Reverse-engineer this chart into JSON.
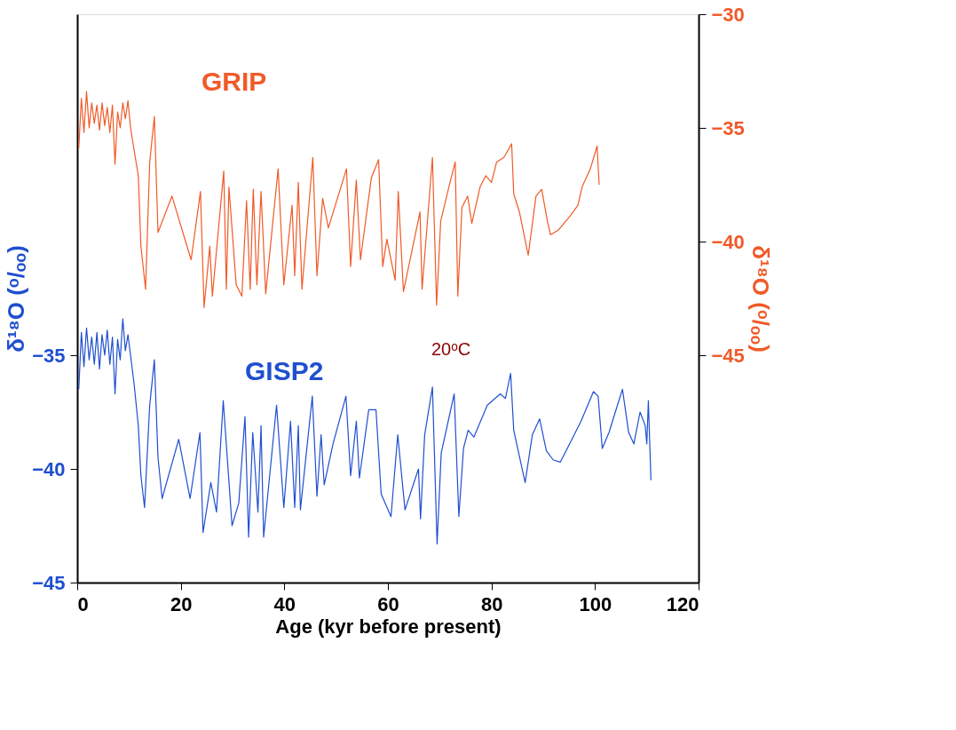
{
  "chart_data": {
    "type": "line",
    "xlabel": "Age (kyr before present)",
    "ylabel": "δ¹⁸O (ᵒ/ₒₒ)",
    "y2label": "δ¹⁸O (ᵒ/ₒₒ)",
    "xlim": [
      0,
      120
    ],
    "xticks": [
      0,
      20,
      40,
      60,
      80,
      100,
      120
    ],
    "ylim": [
      -45,
      -20
    ],
    "yticks": [
      -45,
      -40,
      -35
    ],
    "y2lim": [
      -55,
      -30
    ],
    "y2ticks": [
      -30,
      -35,
      -40,
      -45
    ],
    "grid": false,
    "marker": "none",
    "line_style": "solid",
    "annotations": [
      "20ᵒC"
    ],
    "series": [
      {
        "name": "GRIP",
        "color": "#f05a28",
        "axis": "y2",
        "x": [
          0.3,
          0.8,
          1.3,
          1.8,
          2.3,
          2.8,
          3.3,
          3.8,
          4.3,
          4.8,
          5.3,
          5.8,
          6.3,
          6.8,
          7.3,
          7.8,
          8.3,
          8.8,
          9.3,
          9.8,
          10.3,
          11,
          11.8,
          12.3,
          13.2,
          14,
          14.9,
          15.6,
          18.3,
          20.4,
          22,
          23.8,
          24.5,
          25.6,
          26.1,
          28.3,
          28.8,
          29.3,
          30.7,
          31.8,
          32.7,
          33.4,
          34,
          34.7,
          35.5,
          36.4,
          38.8,
          39.9,
          41.5,
          42,
          42.7,
          43.4,
          45.5,
          46.3,
          47.4,
          48.5,
          52,
          52.8,
          53.9,
          54.7,
          56.8,
          58.2,
          59,
          59.8,
          61.4,
          62,
          63,
          66.2,
          66.6,
          68.6,
          69.4,
          70.2,
          72.1,
          73,
          73.5,
          74.3,
          75.4,
          76.2,
          77.8,
          78.9,
          80,
          81,
          82.4,
          83.9,
          84.3,
          85.4,
          87.1,
          88.6,
          89.7,
          90.8,
          91.4,
          92.9,
          95.1,
          96.7,
          97.5,
          99.1,
          100.4,
          100.8
        ],
        "values": [
          -35.9,
          -33.7,
          -35.2,
          -33.4,
          -35.0,
          -33.9,
          -34.8,
          -34.0,
          -35.1,
          -33.9,
          -34.9,
          -34.1,
          -35.2,
          -34.0,
          -36.6,
          -34.3,
          -35.0,
          -33.9,
          -34.6,
          -33.8,
          -35.0,
          -36.0,
          -37.1,
          -40.2,
          -42.1,
          -36.5,
          -34.5,
          -39.6,
          -38.0,
          -39.6,
          -40.8,
          -37.8,
          -42.9,
          -40.2,
          -42.4,
          -36.9,
          -42.1,
          -37.6,
          -41.9,
          -42.4,
          -38.2,
          -42.1,
          -37.7,
          -41.9,
          -37.8,
          -42.3,
          -36.8,
          -41.9,
          -38.4,
          -41.5,
          -37.4,
          -42.1,
          -36.3,
          -41.5,
          -38.1,
          -39.4,
          -36.8,
          -41.1,
          -37.3,
          -40.8,
          -37.2,
          -36.4,
          -41.1,
          -39.9,
          -41.7,
          -37.8,
          -42.2,
          -38.7,
          -42.1,
          -36.3,
          -42.8,
          -39.1,
          -37.3,
          -36.5,
          -42.4,
          -38.5,
          -38.0,
          -39.2,
          -37.6,
          -37.1,
          -37.4,
          -36.5,
          -36.3,
          -35.7,
          -37.9,
          -38.7,
          -40.6,
          -38.0,
          -37.7,
          -39.1,
          -39.7,
          -39.5,
          -38.9,
          -38.4,
          -37.6,
          -36.8,
          -35.8,
          -37.5
        ]
      },
      {
        "name": "GISP2",
        "color": "#1f4fd0",
        "axis": "y",
        "x": [
          0.3,
          0.8,
          1.3,
          1.8,
          2.3,
          2.8,
          3.3,
          3.8,
          4.3,
          4.8,
          5.3,
          5.8,
          6.3,
          6.8,
          7.3,
          7.8,
          8.3,
          8.8,
          9.3,
          9.8,
          10.3,
          11,
          11.8,
          12.3,
          13,
          14,
          14.9,
          15.6,
          16.4,
          19.6,
          21.8,
          23.7,
          24.3,
          25.8,
          26.9,
          28.2,
          29.9,
          31.2,
          32.4,
          33.1,
          33.9,
          34.9,
          35.5,
          36,
          38.5,
          39.9,
          41.2,
          42,
          42.7,
          43.1,
          45.4,
          46.3,
          47.1,
          47.7,
          49.4,
          51.9,
          52.8,
          53.9,
          54.5,
          56.3,
          57.7,
          58.7,
          60.6,
          61.9,
          63.3,
          65.9,
          66.3,
          67.1,
          68.6,
          69.5,
          70.3,
          72.8,
          73.7,
          74.6,
          75.5,
          76.6,
          79.2,
          81.7,
          82.7,
          83.7,
          84.3,
          86.5,
          87.9,
          89.3,
          90.6,
          91.9,
          93.3,
          95.1,
          97.3,
          99.7,
          100.6,
          101.4,
          102.7,
          104.6,
          105.3,
          106.5,
          107.5,
          108.7,
          109.7,
          110,
          110.3,
          110.8
        ],
        "values": [
          -36.5,
          -34.0,
          -35.5,
          -33.8,
          -35.2,
          -34.2,
          -35.4,
          -34.0,
          -35.6,
          -34.1,
          -35.0,
          -33.9,
          -35.4,
          -34.2,
          -36.7,
          -34.3,
          -35.2,
          -33.4,
          -34.8,
          -34.1,
          -35.0,
          -36.3,
          -38.1,
          -40.3,
          -41.7,
          -37.2,
          -35.2,
          -39.5,
          -41.3,
          -38.7,
          -41.3,
          -38.4,
          -42.8,
          -40.6,
          -41.9,
          -37.0,
          -42.5,
          -41.5,
          -37.7,
          -43.0,
          -38.4,
          -41.9,
          -38.1,
          -43.0,
          -37.2,
          -41.7,
          -37.9,
          -41.7,
          -38.1,
          -41.8,
          -36.8,
          -41.2,
          -38.5,
          -40.7,
          -38.9,
          -36.8,
          -40.3,
          -37.9,
          -40.4,
          -37.4,
          -37.4,
          -41.1,
          -42.1,
          -38.5,
          -41.8,
          -40.0,
          -42.2,
          -38.5,
          -36.4,
          -43.3,
          -39.3,
          -36.7,
          -42.1,
          -39.1,
          -38.3,
          -38.6,
          -37.2,
          -36.7,
          -36.9,
          -35.8,
          -38.3,
          -40.6,
          -38.5,
          -37.8,
          -39.2,
          -39.6,
          -39.7,
          -38.9,
          -37.9,
          -36.6,
          -36.8,
          -39.1,
          -38.4,
          -37.0,
          -36.5,
          -38.4,
          -38.9,
          -37.5,
          -38.1,
          -38.9,
          -37.0,
          -40.5
        ]
      }
    ]
  }
}
